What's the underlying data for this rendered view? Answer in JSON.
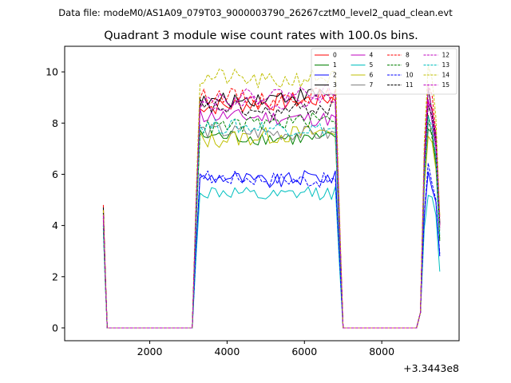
{
  "figure": {
    "suptitle": "Data file: modeM0/AS1A09_079T03_9000003790_26267cztM0_level2_quad_clean.evt"
  },
  "chart_data": {
    "type": "line",
    "title": "Quadrant 3 module wise count rates with 100.0s bins.",
    "xlabel": "",
    "ylabel": "",
    "x_offset_label": "+3.3443e8",
    "xlim": [
      -200,
      10000
    ],
    "ylim": [
      -0.5,
      11
    ],
    "xticks": [
      2000,
      4000,
      6000,
      8000
    ],
    "yticks": [
      0,
      2,
      4,
      6,
      8,
      10
    ],
    "grid": false,
    "legend_position": "top-right",
    "segments": [
      {
        "x_start": 800,
        "x_end": 900
      },
      {
        "x_start": 1000,
        "x_end": 3100
      },
      {
        "x_start": 3200,
        "x_end": 6900
      },
      {
        "x_start": 7000,
        "x_end": 8900
      },
      {
        "x_start": 9000,
        "x_end": 9500
      }
    ],
    "series": [
      {
        "name": "0",
        "color": "#ff0000",
        "dash": "solid",
        "level": 8.6,
        "amp": 0.35,
        "start": 4.8,
        "end": 4.0
      },
      {
        "name": "1",
        "color": "#008000",
        "dash": "solid",
        "level": 7.5,
        "amp": 0.3,
        "start": 4.0,
        "end": 3.4
      },
      {
        "name": "2",
        "color": "#0000ff",
        "dash": "solid",
        "level": 5.8,
        "amp": 0.3,
        "start": 4.5,
        "end": 2.8
      },
      {
        "name": "3",
        "color": "#000000",
        "dash": "solid",
        "level": 8.8,
        "amp": 0.3,
        "start": 4.7,
        "end": 4.1
      },
      {
        "name": "4",
        "color": "#bf00bf",
        "dash": "solid",
        "level": 8.3,
        "amp": 0.3,
        "start": 4.2,
        "end": 3.9
      },
      {
        "name": "5",
        "color": "#00bfbf",
        "dash": "solid",
        "level": 5.2,
        "amp": 0.3,
        "start": 3.8,
        "end": 2.2
      },
      {
        "name": "6",
        "color": "#bfbf00",
        "dash": "solid",
        "level": 7.3,
        "amp": 0.35,
        "start": 4.4,
        "end": 4.2
      },
      {
        "name": "7",
        "color": "#808080",
        "dash": "solid",
        "level": 7.7,
        "amp": 0.3,
        "start": 4.1,
        "end": 3.8
      },
      {
        "name": "8",
        "color": "#ff0000",
        "dash": "dashed",
        "level": 9.0,
        "amp": 0.3,
        "start": 4.6,
        "end": 4.3
      },
      {
        "name": "9",
        "color": "#008000",
        "dash": "dashed",
        "level": 7.8,
        "amp": 0.3,
        "start": 3.9,
        "end": 3.5
      },
      {
        "name": "10",
        "color": "#0000ff",
        "dash": "dashed",
        "level": 5.9,
        "amp": 0.3,
        "start": 4.3,
        "end": 2.9
      },
      {
        "name": "11",
        "color": "#000000",
        "dash": "dashed",
        "level": 8.5,
        "amp": 0.3,
        "start": 4.5,
        "end": 4.0
      },
      {
        "name": "12",
        "color": "#bf00bf",
        "dash": "dashed",
        "level": 8.6,
        "amp": 0.3,
        "start": 4.3,
        "end": 4.0
      },
      {
        "name": "13",
        "color": "#00bfbf",
        "dash": "dashed",
        "level": 7.9,
        "amp": 0.3,
        "start": 4.0,
        "end": 3.6
      },
      {
        "name": "14",
        "color": "#bfbf00",
        "dash": "dashed",
        "level": 9.7,
        "amp": 0.35,
        "start": 4.6,
        "end": 4.4
      },
      {
        "name": "15",
        "color": "#bf00bf",
        "dash": "dashed",
        "level": 8.9,
        "amp": 0.3,
        "start": 4.4,
        "end": 4.1
      }
    ]
  }
}
